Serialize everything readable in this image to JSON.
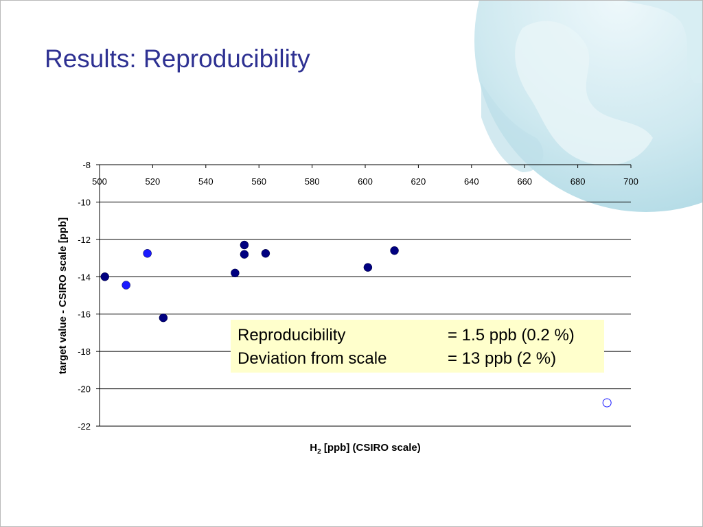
{
  "slide": {
    "title": "Results: Reproducibility"
  },
  "chart_data": {
    "type": "scatter",
    "x_label_main": "H",
    "x_label_sub": "2",
    "x_label_rest": " [ppb] (CSIRO scale)",
    "ylabel": "target value - CSIRO scale [ppb]",
    "xlim": [
      500,
      700
    ],
    "ylim": [
      -22,
      -8
    ],
    "x_ticks": [
      500,
      520,
      540,
      560,
      580,
      600,
      620,
      640,
      660,
      680,
      700
    ],
    "y_ticks": [
      -8,
      -10,
      -12,
      -14,
      -16,
      -18,
      -20,
      -22
    ],
    "x_axis_position": "top",
    "grid": "horizontal",
    "series": [
      {
        "marker": "filled",
        "color": "#000080",
        "x": [
          502,
          524,
          551,
          554.5,
          554.5,
          562.5,
          601,
          611
        ],
        "y": [
          -14.0,
          -16.2,
          -13.8,
          -12.3,
          -12.8,
          -12.75,
          -13.5,
          -12.6
        ]
      },
      {
        "marker": "filled",
        "color": "#1a1aff",
        "x": [
          510,
          518
        ],
        "y": [
          -14.45,
          -12.75
        ]
      },
      {
        "marker": "hollow",
        "color": "#1a1aff",
        "x": [
          691
        ],
        "y": [
          -20.75
        ]
      }
    ],
    "annotation": {
      "rows": [
        {
          "label": "Reproducibility",
          "value": "= 1.5 ppb (0.2 %)"
        },
        {
          "label": "Deviation from scale",
          "value": "= 13 ppb (2 %)"
        }
      ]
    }
  }
}
